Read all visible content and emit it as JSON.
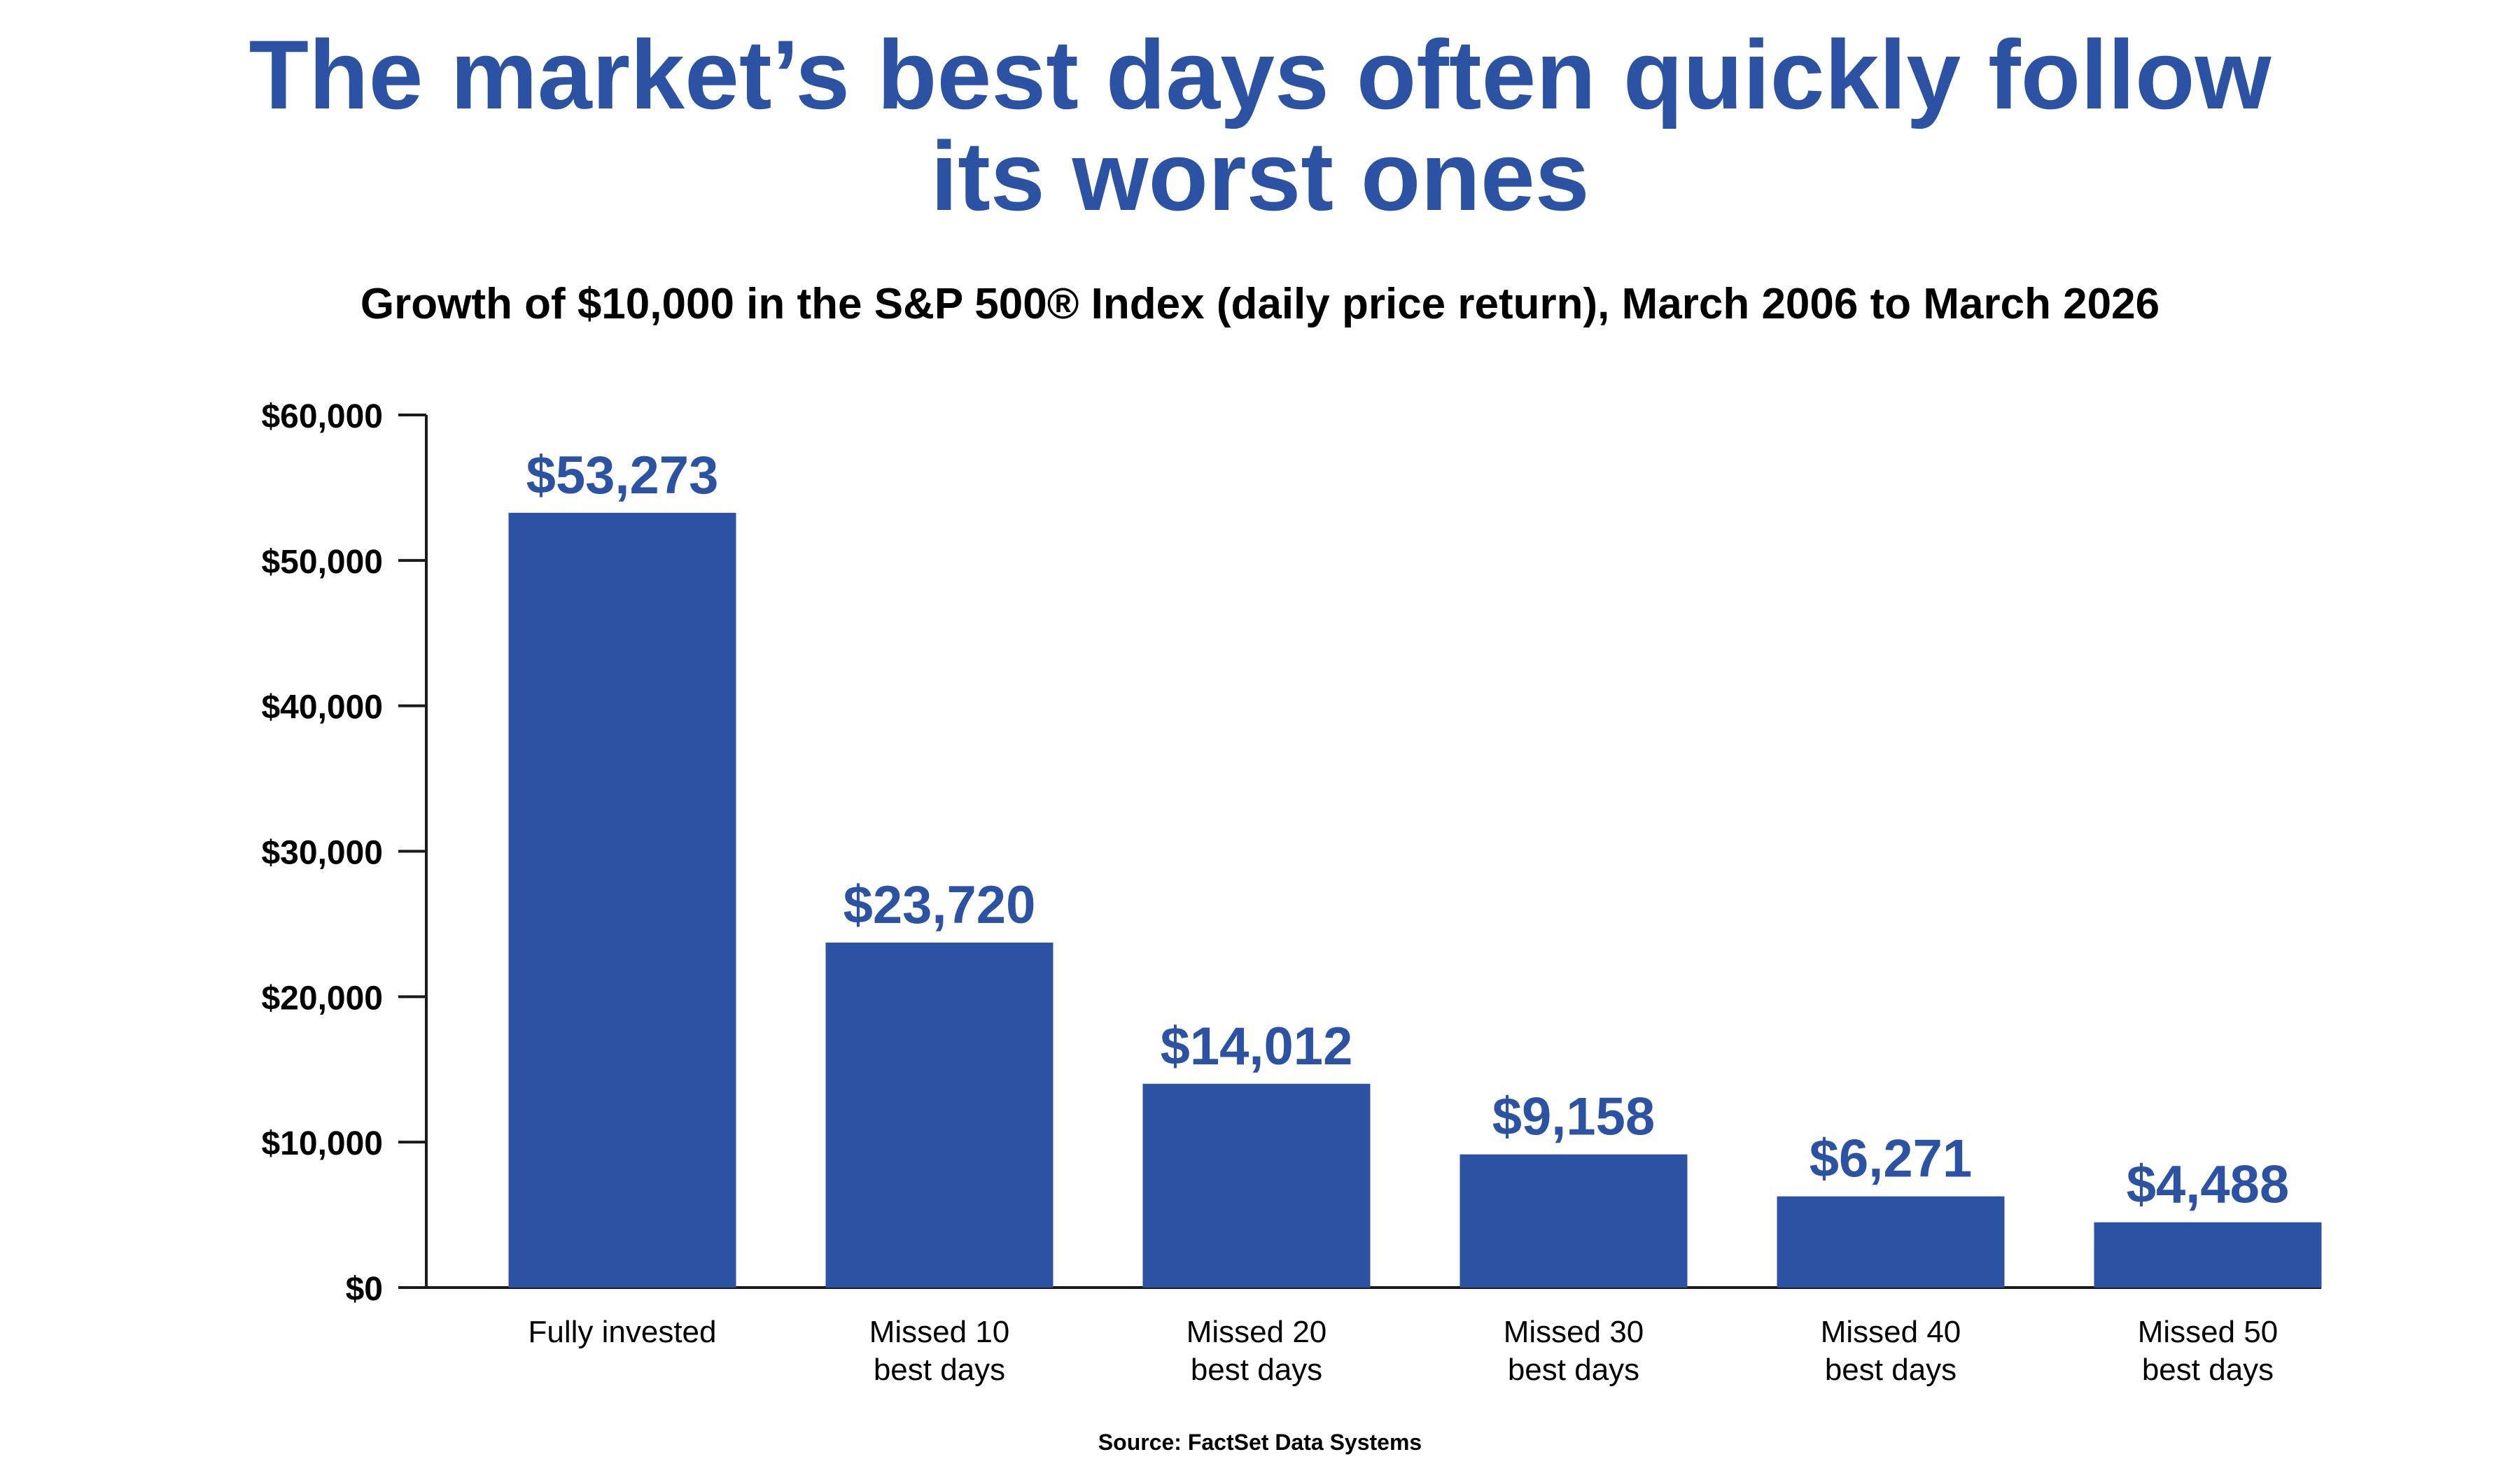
{
  "chart_data": {
    "type": "bar",
    "title_lines": [
      "The market’s best days often quickly follow",
      "its worst ones"
    ],
    "subtitle": "Growth of $10,000 in the S&P 500® Index (daily price return), March 2006 to March 2026",
    "categories": [
      [
        "Fully invested"
      ],
      [
        "Missed 10",
        "best days"
      ],
      [
        "Missed 20",
        "best days"
      ],
      [
        "Missed 30",
        "best days"
      ],
      [
        "Missed 40",
        "best days"
      ],
      [
        "Missed 50",
        "best days"
      ]
    ],
    "values": [
      53273,
      23720,
      14012,
      9158,
      6271,
      4488
    ],
    "data_labels": [
      "$53,273",
      "$23,720",
      "$14,012",
      "$9,158",
      "$6,271",
      "$4,488"
    ],
    "y_ticks": [
      0,
      10000,
      20000,
      30000,
      40000,
      50000,
      60000
    ],
    "y_tick_labels": [
      "$0",
      "$10,000",
      "$20,000",
      "$30,000",
      "$40,000",
      "$50,000",
      "$60,000"
    ],
    "ylim": [
      0,
      60000
    ],
    "xlabel": "",
    "ylabel": "",
    "grid": false,
    "source": "Source: FactSet Data Systems",
    "colors": {
      "bar": "#2c52a3",
      "title": "#2c52a3",
      "label": "#2c52a3",
      "text": "#000000"
    }
  }
}
